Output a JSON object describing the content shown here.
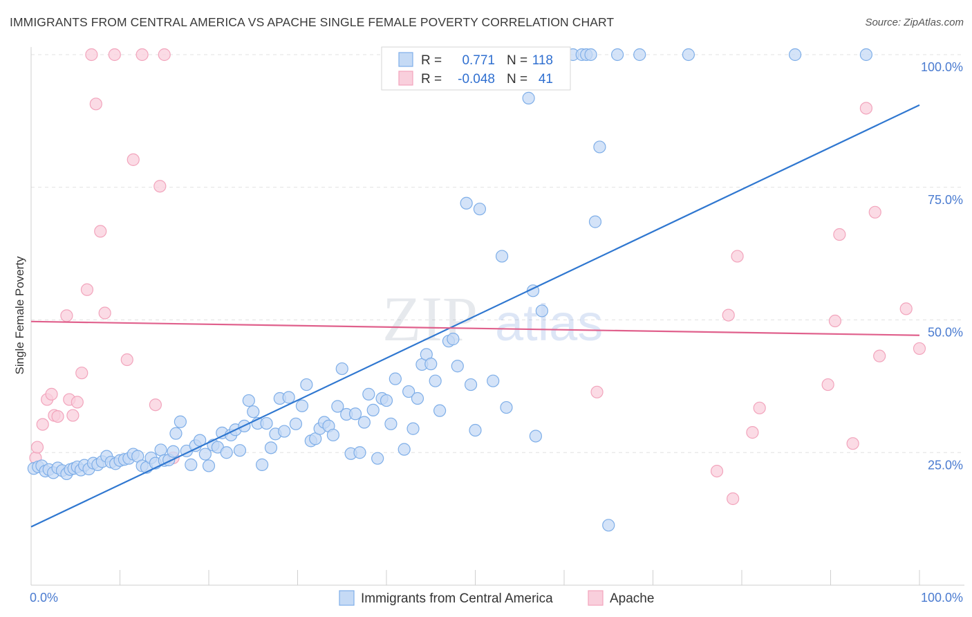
{
  "title": "IMMIGRANTS FROM CENTRAL AMERICA VS APACHE SINGLE FEMALE POVERTY CORRELATION CHART",
  "source": "Source: ZipAtlas.com",
  "watermark": {
    "zip": "ZIP",
    "atlas": "atlas"
  },
  "legend": {
    "r_label": "R =",
    "n_label": "N =",
    "rows": [
      {
        "r": "0.771",
        "n": "118"
      },
      {
        "r": "-0.048",
        "n": "41"
      }
    ]
  },
  "chart_data": {
    "type": "scatter",
    "title": "IMMIGRANTS FROM CENTRAL AMERICA VS APACHE SINGLE FEMALE POVERTY CORRELATION CHART",
    "xlabel": "",
    "ylabel": "Single Female Poverty",
    "xlim": [
      0,
      100
    ],
    "ylim": [
      0,
      100
    ],
    "x_tick_labels": [
      "0.0%",
      "100.0%"
    ],
    "y_tick_labels": [
      "25.0%",
      "50.0%",
      "75.0%",
      "100.0%"
    ],
    "y_ticks": [
      25,
      50,
      75,
      100
    ],
    "grid": true,
    "legend_position": "bottom",
    "series": [
      {
        "name": "Immigrants from Central America",
        "color": "#7eaee8",
        "fill": "#c5daf5",
        "line_color": "#2f77d0",
        "trend": {
          "x": [
            0,
            100
          ],
          "y": [
            11,
            90.5
          ]
        },
        "points": [
          [
            0.3,
            22
          ],
          [
            0.8,
            22.3
          ],
          [
            1.2,
            22.5
          ],
          [
            1.6,
            21.5
          ],
          [
            2,
            21.8
          ],
          [
            2.5,
            21.2
          ],
          [
            3,
            22.1
          ],
          [
            3.5,
            21.6
          ],
          [
            4,
            21
          ],
          [
            4.4,
            21.8
          ],
          [
            4.8,
            22
          ],
          [
            5.2,
            22.3
          ],
          [
            5.6,
            21.7
          ],
          [
            6,
            22.6
          ],
          [
            6.5,
            21.9
          ],
          [
            7,
            23
          ],
          [
            7.5,
            22.7
          ],
          [
            8,
            23.3
          ],
          [
            8.5,
            24.3
          ],
          [
            9,
            23.2
          ],
          [
            9.5,
            22.9
          ],
          [
            10,
            23.5
          ],
          [
            10.5,
            23.7
          ],
          [
            11,
            23.9
          ],
          [
            11.5,
            24.7
          ],
          [
            12,
            24.3
          ],
          [
            12.5,
            22.5
          ],
          [
            13,
            22.2
          ],
          [
            13.5,
            24
          ],
          [
            14,
            23
          ],
          [
            14.6,
            25.5
          ],
          [
            15,
            23.5
          ],
          [
            15.5,
            23.6
          ],
          [
            16,
            25.2
          ],
          [
            16.3,
            28.6
          ],
          [
            16.8,
            30.8
          ],
          [
            17.5,
            25.3
          ],
          [
            18,
            22.7
          ],
          [
            18.5,
            26.3
          ],
          [
            19,
            27.3
          ],
          [
            19.6,
            24.7
          ],
          [
            20,
            22.5
          ],
          [
            20.5,
            26.4
          ],
          [
            21,
            26
          ],
          [
            21.5,
            28.7
          ],
          [
            22,
            25
          ],
          [
            22.5,
            28.3
          ],
          [
            23,
            29.3
          ],
          [
            23.5,
            25.4
          ],
          [
            24,
            30
          ],
          [
            24.5,
            34.8
          ],
          [
            25,
            32.7
          ],
          [
            25.5,
            30.5
          ],
          [
            26,
            22.7
          ],
          [
            26.5,
            30.5
          ],
          [
            27,
            25.9
          ],
          [
            27.5,
            28.5
          ],
          [
            28,
            35.2
          ],
          [
            28.5,
            29
          ],
          [
            29,
            35.4
          ],
          [
            29.8,
            30.4
          ],
          [
            30.5,
            33.8
          ],
          [
            31,
            37.8
          ],
          [
            31.5,
            27.2
          ],
          [
            32,
            27.6
          ],
          [
            32.5,
            29.5
          ],
          [
            33,
            30.7
          ],
          [
            33.5,
            30
          ],
          [
            34,
            28.3
          ],
          [
            34.5,
            33.7
          ],
          [
            35,
            40.8
          ],
          [
            35.5,
            32.2
          ],
          [
            36,
            24.8
          ],
          [
            36.5,
            32.3
          ],
          [
            37,
            25
          ],
          [
            37.5,
            30.7
          ],
          [
            38,
            36
          ],
          [
            38.5,
            33
          ],
          [
            39,
            23.9
          ],
          [
            39.5,
            35.2
          ],
          [
            40,
            34.8
          ],
          [
            40.5,
            30.4
          ],
          [
            41,
            38.9
          ],
          [
            42,
            25.6
          ],
          [
            42.5,
            36.5
          ],
          [
            43,
            29.5
          ],
          [
            43.5,
            35.2
          ],
          [
            44,
            41.6
          ],
          [
            44.5,
            43.5
          ],
          [
            45,
            41.7
          ],
          [
            45.5,
            38.5
          ],
          [
            46,
            32.9
          ],
          [
            47,
            46
          ],
          [
            47.5,
            46.4
          ],
          [
            48,
            41.3
          ],
          [
            49,
            72
          ],
          [
            49.5,
            37.8
          ],
          [
            50,
            29.2
          ],
          [
            50.5,
            70.9
          ],
          [
            52,
            38.5
          ],
          [
            53,
            62
          ],
          [
            53.5,
            33.5
          ],
          [
            56,
            91.8
          ],
          [
            56.5,
            55.5
          ],
          [
            56.8,
            28.1
          ],
          [
            57.5,
            51.7
          ],
          [
            61,
            100
          ],
          [
            62,
            100
          ],
          [
            62.5,
            100
          ],
          [
            63,
            100
          ],
          [
            63.5,
            68.5
          ],
          [
            64,
            82.6
          ],
          [
            65,
            11.3
          ],
          [
            66,
            100
          ],
          [
            68.5,
            100
          ],
          [
            74,
            100
          ],
          [
            86,
            100
          ],
          [
            94,
            100
          ]
        ]
      },
      {
        "name": "Apache",
        "color": "#f2a4bc",
        "fill": "#f9cfdc",
        "line_color": "#e0608c",
        "trend": {
          "x": [
            0,
            100
          ],
          "y": [
            49.7,
            47.1
          ]
        },
        "points": [
          [
            0.5,
            24
          ],
          [
            0.7,
            26
          ],
          [
            1.3,
            30.3
          ],
          [
            1.8,
            35
          ],
          [
            2.3,
            36
          ],
          [
            2.6,
            32
          ],
          [
            3,
            31.8
          ],
          [
            4,
            50.8
          ],
          [
            4.3,
            35
          ],
          [
            4.7,
            32
          ],
          [
            5.2,
            34.5
          ],
          [
            5.7,
            40
          ],
          [
            6.3,
            55.7
          ],
          [
            6.8,
            100
          ],
          [
            7.3,
            90.7
          ],
          [
            7.8,
            66.7
          ],
          [
            8.3,
            51.3
          ],
          [
            9.4,
            100
          ],
          [
            10.8,
            42.5
          ],
          [
            11.5,
            80.2
          ],
          [
            12.5,
            100
          ],
          [
            14,
            34
          ],
          [
            14.5,
            75.2
          ],
          [
            15,
            100
          ],
          [
            16,
            24
          ],
          [
            63.7,
            36.4
          ],
          [
            77.2,
            21.5
          ],
          [
            78.5,
            50.9
          ],
          [
            79,
            16.3
          ],
          [
            79.5,
            62
          ],
          [
            81.2,
            28.8
          ],
          [
            82,
            33.4
          ],
          [
            89.7,
            37.8
          ],
          [
            90.5,
            49.8
          ],
          [
            91,
            66.1
          ],
          [
            92.5,
            26.7
          ],
          [
            94,
            89.9
          ],
          [
            95,
            70.3
          ],
          [
            95.5,
            43.2
          ],
          [
            98.5,
            52.1
          ],
          [
            100,
            44.6
          ]
        ]
      }
    ]
  }
}
